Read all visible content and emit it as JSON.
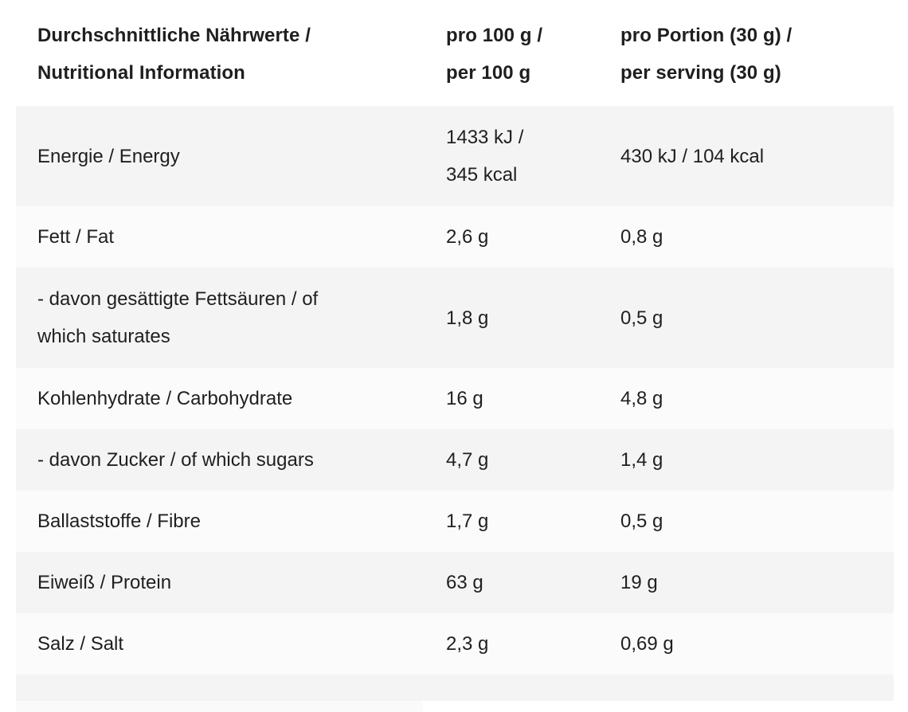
{
  "table": {
    "header": {
      "nutrients": "Durchschnittliche Nährwerte /\nNutritional Information",
      "per_100g": "pro 100 g /\nper 100 g",
      "per_serving": "pro Portion (30 g) /\nper serving (30 g)"
    },
    "rows": [
      {
        "label": "Energie / Energy",
        "per_100g": "1433 kJ /\n345 kcal",
        "per_serving": "430 kJ / 104 kcal"
      },
      {
        "label": "Fett / Fat",
        "per_100g": "2,6 g",
        "per_serving": "0,8 g"
      },
      {
        "label": "- davon gesättigte Fettsäuren / of\nwhich saturates",
        "per_100g": "1,8 g",
        "per_serving": "0,5 g"
      },
      {
        "label": "Kohlenhydrate / Carbohydrate",
        "per_100g": "16 g",
        "per_serving": "4,8 g"
      },
      {
        "label": "- davon Zucker / of which sugars",
        "per_100g": "4,7 g",
        "per_serving": "1,4 g"
      },
      {
        "label": "Ballaststoffe / Fibre",
        "per_100g": "1,7 g",
        "per_serving": "0,5 g"
      },
      {
        "label": "Eiweiß / Protein",
        "per_100g": "63 g",
        "per_serving": "19 g"
      },
      {
        "label": "Salz / Salt",
        "per_100g": "2,3 g",
        "per_serving": "0,69 g"
      }
    ],
    "colors": {
      "row_shaded": "#f4f4f4",
      "row_light": "#fbfbfb",
      "text": "#1f1f1f",
      "header_text": "#121212",
      "background": "#ffffff"
    }
  }
}
